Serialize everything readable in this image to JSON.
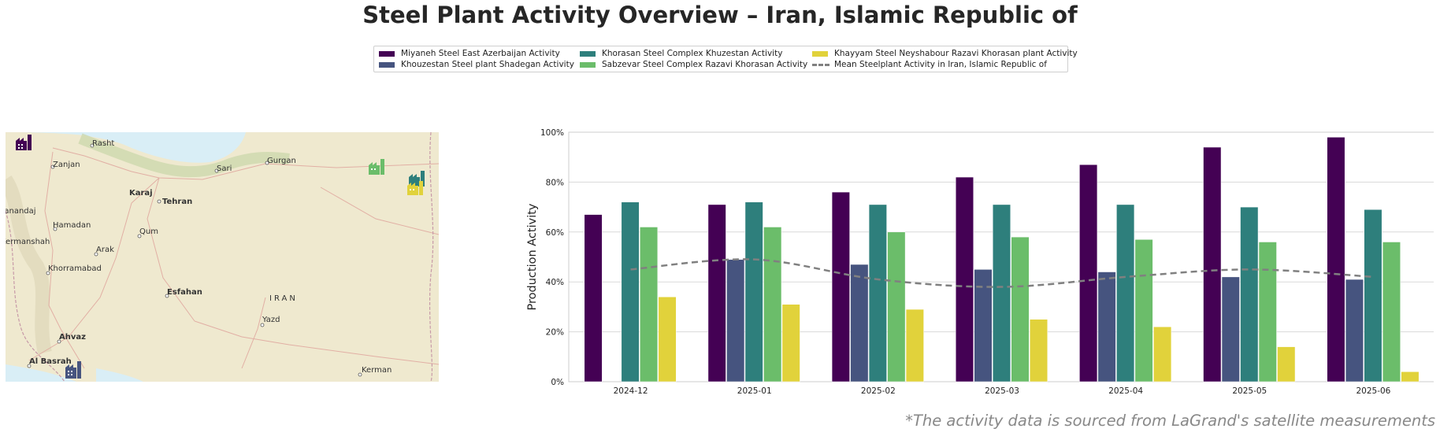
{
  "title": "Steel Plant Activity Overview – Iran, Islamic Republic of",
  "footnote": "*The activity data is sourced from LaGrand's satellite measurements",
  "legend": [
    {
      "label": "Miyaneh Steel East Azerbaijan Activity",
      "color": "#440154",
      "type": "bar"
    },
    {
      "label": "Khouzestan Steel plant Shadegan Activity",
      "color": "#46547f",
      "type": "bar"
    },
    {
      "label": "Khorasan Steel Complex Khuzestan Activity",
      "color": "#2e7f7c",
      "type": "bar"
    },
    {
      "label": "Sabzevar Steel Complex Razavi Khorasan Activity",
      "color": "#6bbd6a",
      "type": "bar"
    },
    {
      "label": "Khayyam Steel Neyshabour Razavi Khorasan plant Activity",
      "color": "#e1d23b",
      "type": "bar"
    },
    {
      "label": "Mean Steelplant Activity in Iran, Islamic Republic of",
      "color": "#808080",
      "type": "dashed-line"
    }
  ],
  "map": {
    "cities": [
      "Rasht",
      "Zanjan",
      "Sari",
      "Gurgan",
      "Karaj",
      "Tehran",
      "Sanandaj",
      "Hamadan",
      "Qum",
      "Kermanshah",
      "Arak",
      "Khorramabad",
      "Esfahan",
      "IRAN",
      "Yazd",
      "Ahvaz",
      "Al Basrah",
      "Kerman"
    ],
    "plant_icons": [
      {
        "name": "Miyaneh Steel East Azerbaijan",
        "color": "#440154"
      },
      {
        "name": "Sabzevar Steel Complex Razavi Khorasan",
        "color": "#6bbd6a"
      },
      {
        "name": "Khorasan Steel Complex Khuzestan",
        "color": "#2e7f7c"
      },
      {
        "name": "Khayyam Steel Neyshabour Razavi Khorasan plant",
        "color": "#e1d23b"
      },
      {
        "name": "Khouzestan Steel plant Shadegan",
        "color": "#46547f"
      }
    ]
  },
  "chart_data": {
    "type": "bar",
    "ylabel": "Production Activity",
    "ylim": [
      0,
      100
    ],
    "yticks": [
      "0%",
      "20%",
      "40%",
      "60%",
      "80%",
      "100%"
    ],
    "grid": true,
    "categories": [
      "2024-12",
      "2025-01",
      "2025-02",
      "2025-03",
      "2025-04",
      "2025-05",
      "2025-06"
    ],
    "series": [
      {
        "name": "Miyaneh Steel East Azerbaijan Activity",
        "color": "#440154",
        "values": [
          67,
          71,
          76,
          82,
          87,
          94,
          98
        ]
      },
      {
        "name": "Khouzestan Steel plant Shadegan Activity",
        "color": "#46547f",
        "values": [
          null,
          49,
          47,
          45,
          44,
          42,
          41
        ]
      },
      {
        "name": "Khorasan Steel Complex Khuzestan Activity",
        "color": "#2e7f7c",
        "values": [
          72,
          72,
          71,
          71,
          71,
          70,
          69
        ]
      },
      {
        "name": "Sabzevar Steel Complex Razavi Khorasan Activity",
        "color": "#6bbd6a",
        "values": [
          62,
          62,
          60,
          58,
          57,
          56,
          56
        ]
      },
      {
        "name": "Khayyam Steel Neyshabour Razavi Khorasan plant Activity",
        "color": "#e1d23b",
        "values": [
          34,
          31,
          29,
          25,
          22,
          14,
          4
        ]
      }
    ],
    "mean_line": {
      "name": "Mean Steelplant Activity in Iran, Islamic Republic of",
      "color": "#808080",
      "values": [
        45,
        49,
        41,
        38,
        42,
        45,
        42
      ]
    }
  }
}
